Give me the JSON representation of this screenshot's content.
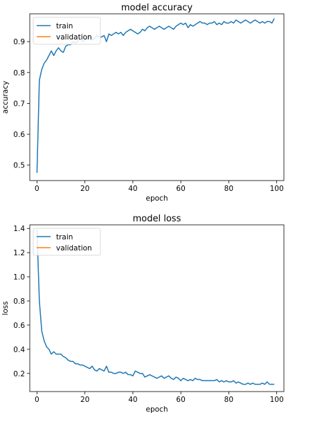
{
  "chart_data": [
    {
      "type": "line",
      "title": "model accuracy",
      "xlabel": "epoch",
      "ylabel": "accuracy",
      "xlim": [
        -3,
        103
      ],
      "ylim": [
        0.45,
        0.99
      ],
      "xticks": [
        0,
        20,
        40,
        60,
        80,
        100
      ],
      "yticks": [
        0.5,
        0.6,
        0.7,
        0.8,
        0.9
      ],
      "ytick_labels": [
        "0.5",
        "0.6",
        "0.7",
        "0.8",
        "0.9"
      ],
      "grid": false,
      "legend": "upper-left",
      "series": [
        {
          "name": "train",
          "color": "#1f77b4",
          "x": [
            0,
            1,
            2,
            3,
            4,
            5,
            6,
            7,
            8,
            9,
            10,
            11,
            12,
            13,
            14,
            15,
            16,
            17,
            18,
            19,
            20,
            21,
            22,
            23,
            24,
            25,
            26,
            27,
            28,
            29,
            30,
            31,
            32,
            33,
            34,
            35,
            36,
            37,
            38,
            39,
            40,
            41,
            42,
            43,
            44,
            45,
            46,
            47,
            48,
            49,
            50,
            51,
            52,
            53,
            54,
            55,
            56,
            57,
            58,
            59,
            60,
            61,
            62,
            63,
            64,
            65,
            66,
            67,
            68,
            69,
            70,
            71,
            72,
            73,
            74,
            75,
            76,
            77,
            78,
            79,
            80,
            81,
            82,
            83,
            84,
            85,
            86,
            87,
            88,
            89,
            90,
            91,
            92,
            93,
            94,
            95,
            96,
            97,
            98,
            99
          ],
          "values": [
            0.475,
            0.775,
            0.81,
            0.83,
            0.84,
            0.855,
            0.87,
            0.855,
            0.87,
            0.88,
            0.87,
            0.865,
            0.885,
            0.89,
            0.89,
            0.9,
            0.895,
            0.9,
            0.91,
            0.9,
            0.905,
            0.91,
            0.915,
            0.905,
            0.91,
            0.92,
            0.915,
            0.915,
            0.92,
            0.9,
            0.925,
            0.92,
            0.925,
            0.93,
            0.925,
            0.93,
            0.92,
            0.93,
            0.935,
            0.94,
            0.935,
            0.93,
            0.925,
            0.93,
            0.94,
            0.935,
            0.945,
            0.95,
            0.945,
            0.94,
            0.945,
            0.95,
            0.945,
            0.94,
            0.945,
            0.95,
            0.945,
            0.94,
            0.95,
            0.955,
            0.96,
            0.955,
            0.96,
            0.945,
            0.955,
            0.95,
            0.955,
            0.96,
            0.965,
            0.96,
            0.96,
            0.955,
            0.96,
            0.96,
            0.965,
            0.955,
            0.96,
            0.955,
            0.965,
            0.96,
            0.96,
            0.965,
            0.96,
            0.97,
            0.965,
            0.96,
            0.965,
            0.97,
            0.965,
            0.96,
            0.965,
            0.97,
            0.965,
            0.96,
            0.965,
            0.96,
            0.965,
            0.965,
            0.96,
            0.975
          ]
        },
        {
          "name": "validation",
          "color": "#ff7f0e",
          "x": [],
          "values": []
        }
      ]
    },
    {
      "type": "line",
      "title": "model loss",
      "xlabel": "epoch",
      "ylabel": "loss",
      "xlim": [
        -3,
        103
      ],
      "ylim": [
        0.05,
        1.43
      ],
      "xticks": [
        0,
        20,
        40,
        60,
        80,
        100
      ],
      "yticks": [
        0.2,
        0.4,
        0.6,
        0.8,
        1.0,
        1.2,
        1.4
      ],
      "ytick_labels": [
        "0.2",
        "0.4",
        "0.6",
        "0.8",
        "1.0",
        "1.2",
        "1.4"
      ],
      "grid": false,
      "legend": "upper-left",
      "series": [
        {
          "name": "train",
          "color": "#1f77b4",
          "x": [
            0,
            1,
            2,
            3,
            4,
            5,
            6,
            7,
            8,
            9,
            10,
            11,
            12,
            13,
            14,
            15,
            16,
            17,
            18,
            19,
            20,
            21,
            22,
            23,
            24,
            25,
            26,
            27,
            28,
            29,
            30,
            31,
            32,
            33,
            34,
            35,
            36,
            37,
            38,
            39,
            40,
            41,
            42,
            43,
            44,
            45,
            46,
            47,
            48,
            49,
            50,
            51,
            52,
            53,
            54,
            55,
            56,
            57,
            58,
            59,
            60,
            61,
            62,
            63,
            64,
            65,
            66,
            67,
            68,
            69,
            70,
            71,
            72,
            73,
            74,
            75,
            76,
            77,
            78,
            79,
            80,
            81,
            82,
            83,
            84,
            85,
            86,
            87,
            88,
            89,
            90,
            91,
            92,
            93,
            94,
            95,
            96,
            97,
            98,
            99
          ],
          "values": [
            1.39,
            0.8,
            0.55,
            0.47,
            0.42,
            0.4,
            0.36,
            0.38,
            0.36,
            0.36,
            0.36,
            0.34,
            0.33,
            0.31,
            0.3,
            0.3,
            0.28,
            0.28,
            0.27,
            0.27,
            0.26,
            0.25,
            0.24,
            0.26,
            0.23,
            0.22,
            0.24,
            0.23,
            0.22,
            0.26,
            0.21,
            0.21,
            0.2,
            0.2,
            0.21,
            0.21,
            0.2,
            0.21,
            0.19,
            0.19,
            0.18,
            0.22,
            0.21,
            0.2,
            0.2,
            0.17,
            0.18,
            0.19,
            0.18,
            0.17,
            0.16,
            0.17,
            0.18,
            0.16,
            0.17,
            0.18,
            0.16,
            0.15,
            0.17,
            0.16,
            0.14,
            0.16,
            0.15,
            0.14,
            0.15,
            0.14,
            0.16,
            0.15,
            0.15,
            0.14,
            0.14,
            0.14,
            0.14,
            0.14,
            0.14,
            0.15,
            0.13,
            0.14,
            0.13,
            0.14,
            0.13,
            0.13,
            0.14,
            0.12,
            0.13,
            0.12,
            0.11,
            0.11,
            0.12,
            0.11,
            0.12,
            0.11,
            0.11,
            0.11,
            0.12,
            0.11,
            0.13,
            0.11,
            0.11,
            0.11
          ]
        },
        {
          "name": "validation",
          "color": "#ff7f0e",
          "x": [],
          "values": []
        }
      ]
    }
  ]
}
